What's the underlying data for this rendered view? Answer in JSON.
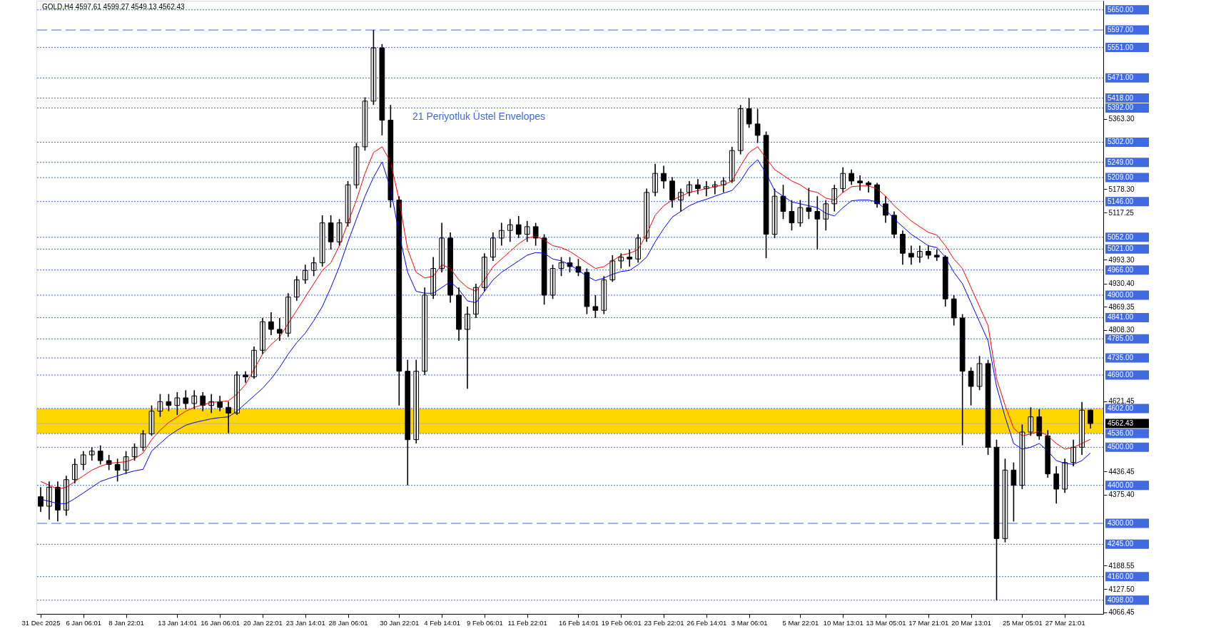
{
  "chart_data": {
    "type": "candlestick",
    "title": "GOLD,H4  4597.61 4599.27 4549.13 4562.43",
    "annotations": [
      "21 Periyotluk Üstel Envelopes"
    ],
    "categories": [
      "31 Dec 2025",
      null,
      null,
      null,
      null,
      "6 Jan 06:01",
      null,
      null,
      null,
      null,
      "8 Jan 22:01",
      null,
      null,
      null,
      null,
      null,
      "13 Jan 14:01",
      null,
      null,
      null,
      null,
      "16 Jan 06:01",
      null,
      null,
      null,
      null,
      "20 Jan 22:01",
      null,
      null,
      null,
      null,
      "23 Jan 14:01",
      null,
      null,
      null,
      null,
      "28 Jan 06:01",
      null,
      null,
      null,
      null,
      null,
      "30 Jan 22:01",
      null,
      null,
      null,
      null,
      "4 Feb 14:01",
      null,
      null,
      null,
      null,
      "9 Feb 06:01",
      null,
      null,
      null,
      null,
      "11 Feb 22:01",
      null,
      null,
      null,
      null,
      null,
      "16 Feb 14:01",
      null,
      null,
      null,
      null,
      "19 Feb 06:01",
      null,
      null,
      null,
      null,
      "23 Feb 22:01",
      null,
      null,
      null,
      null,
      "26 Feb 14:01",
      null,
      null,
      null,
      null,
      "3 Mar 06:01",
      null,
      null,
      null,
      null,
      null,
      "5 Mar 22:01",
      null,
      null,
      null,
      null,
      "10 Mar 13:01",
      null,
      null,
      null,
      null,
      "13 Mar 05:01",
      null,
      null,
      null,
      null,
      "17 Mar 21:01",
      null,
      null,
      null,
      null,
      "20 Mar 13:01",
      null,
      null,
      null,
      null,
      null,
      "25 Mar 05:01",
      null,
      null,
      null,
      null,
      "27 Mar 21:01",
      null,
      null,
      null
    ],
    "ohlc": [
      [
        4370,
        4395,
        4330,
        4345
      ],
      [
        4345,
        4410,
        4310,
        4395
      ],
      [
        4395,
        4410,
        4305,
        4335
      ],
      [
        4335,
        4425,
        4320,
        4415
      ],
      [
        4415,
        4470,
        4405,
        4455
      ],
      [
        4455,
        4490,
        4440,
        4480
      ],
      [
        4480,
        4500,
        4465,
        4490
      ],
      [
        4490,
        4505,
        4455,
        4465
      ],
      [
        4465,
        4480,
        4440,
        4455
      ],
      [
        4455,
        4470,
        4410,
        4440
      ],
      [
        4440,
        4490,
        4430,
        4475
      ],
      [
        4475,
        4510,
        4465,
        4500
      ],
      [
        4500,
        4545,
        4490,
        4535
      ],
      [
        4535,
        4610,
        4530,
        4595
      ],
      [
        4595,
        4640,
        4580,
        4620
      ],
      [
        4620,
        4640,
        4595,
        4610
      ],
      [
        4610,
        4645,
        4585,
        4630
      ],
      [
        4630,
        4650,
        4600,
        4615
      ],
      [
        4615,
        4650,
        4600,
        4635
      ],
      [
        4635,
        4645,
        4595,
        4610
      ],
      [
        4610,
        4640,
        4590,
        4620
      ],
      [
        4620,
        4635,
        4595,
        4605
      ],
      [
        4605,
        4620,
        4537,
        4590
      ],
      [
        4590,
        4700,
        4585,
        4690
      ],
      [
        4690,
        4700,
        4670,
        4685
      ],
      [
        4685,
        4765,
        4680,
        4755
      ],
      [
        4755,
        4840,
        4745,
        4830
      ],
      [
        4830,
        4855,
        4795,
        4810
      ],
      [
        4810,
        4840,
        4780,
        4800
      ],
      [
        4800,
        4905,
        4790,
        4895
      ],
      [
        4895,
        4950,
        4885,
        4940
      ],
      [
        4940,
        4980,
        4930,
        4965
      ],
      [
        4965,
        5000,
        4950,
        4985
      ],
      [
        4985,
        5110,
        4975,
        5090
      ],
      [
        5090,
        5110,
        5020,
        5040
      ],
      [
        5040,
        5100,
        5030,
        5090
      ],
      [
        5090,
        5200,
        5080,
        5190
      ],
      [
        5190,
        5300,
        5180,
        5290
      ],
      [
        5290,
        5420,
        5280,
        5410
      ],
      [
        5410,
        5597,
        5400,
        5550
      ],
      [
        5550,
        5560,
        5320,
        5360
      ],
      [
        5360,
        5400,
        5130,
        5150
      ],
      [
        5150,
        5160,
        4610,
        4700
      ],
      [
        4700,
        4730,
        4400,
        4520
      ],
      [
        4520,
        4730,
        4510,
        4700
      ],
      [
        4700,
        4920,
        4690,
        4900
      ],
      [
        4900,
        5000,
        4890,
        4970
      ],
      [
        4970,
        5090,
        4960,
        5050
      ],
      [
        5050,
        5065,
        4880,
        4900
      ],
      [
        4900,
        4920,
        4780,
        4810
      ],
      [
        4810,
        4870,
        4654,
        4850
      ],
      [
        4850,
        4930,
        4840,
        4920
      ],
      [
        4920,
        5010,
        4910,
        5000
      ],
      [
        5000,
        5065,
        4990,
        5050
      ],
      [
        5050,
        5090,
        5030,
        5070
      ],
      [
        5070,
        5100,
        5040,
        5085
      ],
      [
        5085,
        5108,
        5050,
        5060
      ],
      [
        5060,
        5095,
        5040,
        5080
      ],
      [
        5080,
        5090,
        5030,
        5050
      ],
      [
        5050,
        5060,
        4875,
        4900
      ],
      [
        4900,
        4980,
        4890,
        4970
      ],
      [
        4970,
        5000,
        4950,
        4985
      ],
      [
        4985,
        5000,
        4960,
        4975
      ],
      [
        4975,
        4995,
        4950,
        4960
      ],
      [
        4960,
        4970,
        4850,
        4870
      ],
      [
        4870,
        4900,
        4840,
        4860
      ],
      [
        4860,
        4950,
        4850,
        4940
      ],
      [
        4940,
        5005,
        4935,
        4990
      ],
      [
        4990,
        5010,
        4970,
        5000
      ],
      [
        5000,
        5020,
        4975,
        4995
      ],
      [
        4995,
        5060,
        4985,
        5050
      ],
      [
        5050,
        5180,
        5040,
        5170
      ],
      [
        5170,
        5245,
        5160,
        5220
      ],
      [
        5220,
        5240,
        5180,
        5200
      ],
      [
        5200,
        5210,
        5130,
        5150
      ],
      [
        5150,
        5180,
        5120,
        5170
      ],
      [
        5170,
        5200,
        5160,
        5190
      ],
      [
        5190,
        5205,
        5165,
        5180
      ],
      [
        5180,
        5200,
        5160,
        5185
      ],
      [
        5185,
        5200,
        5165,
        5190
      ],
      [
        5190,
        5210,
        5170,
        5200
      ],
      [
        5200,
        5290,
        5195,
        5280
      ],
      [
        5280,
        5400,
        5270,
        5390
      ],
      [
        5390,
        5418,
        5340,
        5350
      ],
      [
        5350,
        5390,
        5300,
        5320
      ],
      [
        5320,
        5330,
        4997,
        5060
      ],
      [
        5060,
        5180,
        5050,
        5160
      ],
      [
        5160,
        5190,
        5100,
        5120
      ],
      [
        5120,
        5150,
        5070,
        5090
      ],
      [
        5090,
        5150,
        5080,
        5130
      ],
      [
        5130,
        5182,
        5100,
        5120
      ],
      [
        5120,
        5160,
        5020,
        5100
      ],
      [
        5100,
        5150,
        5070,
        5140
      ],
      [
        5140,
        5190,
        5120,
        5180
      ],
      [
        5180,
        5236,
        5170,
        5220
      ],
      [
        5220,
        5230,
        5190,
        5200
      ],
      [
        5200,
        5215,
        5175,
        5195
      ],
      [
        5195,
        5200,
        5170,
        5190
      ],
      [
        5190,
        5195,
        5130,
        5140
      ],
      [
        5140,
        5160,
        5090,
        5110
      ],
      [
        5110,
        5120,
        5050,
        5060
      ],
      [
        5060,
        5070,
        4980,
        5010
      ],
      [
        5010,
        5030,
        4980,
        5000
      ],
      [
        5000,
        5030,
        4985,
        5015
      ],
      [
        5015,
        5030,
        4995,
        5005
      ],
      [
        5005,
        5020,
        4990,
        5000
      ],
      [
        5000,
        5005,
        4870,
        4890
      ],
      [
        4890,
        4900,
        4820,
        4840
      ],
      [
        4840,
        4850,
        4505,
        4700
      ],
      [
        4700,
        4710,
        4610,
        4660
      ],
      [
        4660,
        4740,
        4650,
        4720
      ],
      [
        4720,
        4730,
        4480,
        4500
      ],
      [
        4500,
        4520,
        4098,
        4260
      ],
      [
        4260,
        4470,
        4250,
        4440
      ],
      [
        4440,
        4460,
        4305,
        4400
      ],
      [
        4400,
        4560,
        4390,
        4540
      ],
      [
        4540,
        4605,
        4530,
        4580
      ],
      [
        4580,
        4600,
        4520,
        4530
      ],
      [
        4530,
        4545,
        4420,
        4430
      ],
      [
        4430,
        4450,
        4352,
        4390
      ],
      [
        4390,
        4470,
        4380,
        4460
      ],
      [
        4460,
        4520,
        4450,
        4500
      ],
      [
        4500,
        4619,
        4480,
        4597.61
      ],
      [
        4597.61,
        4599.27,
        4549.13,
        4562.43
      ]
    ],
    "series": [
      {
        "type": "line",
        "color": "#ff0000",
        "values": [
          4410,
          4400,
          4390,
          4395,
          4410,
          4425,
          4440,
          4450,
          4458,
          4460,
          4462,
          4470,
          4485,
          4520,
          4545,
          4565,
          4580,
          4595,
          4605,
          4612,
          4618,
          4620,
          4622,
          4640,
          4665,
          4705,
          4745,
          4770,
          4790,
          4825,
          4860,
          4895,
          4930,
          4965,
          4985,
          5030,
          5090,
          5150,
          5220,
          5275,
          5290,
          5250,
          5150,
          5020,
          4960,
          4945,
          4950,
          4980,
          4970,
          4940,
          4920,
          4910,
          4940,
          4975,
          4995,
          5015,
          5035,
          5050,
          5055,
          5045,
          5030,
          5025,
          5015,
          5000,
          4985,
          4970,
          4975,
          4990,
          5005,
          5010,
          5020,
          5060,
          5110,
          5135,
          5150,
          5160,
          5170,
          5175,
          5180,
          5185,
          5190,
          5200,
          5240,
          5275,
          5290,
          5260,
          5230,
          5215,
          5200,
          5190,
          5175,
          5170,
          5155,
          5150,
          5170,
          5185,
          5187,
          5187,
          5180,
          5160,
          5135,
          5115,
          5095,
          5080,
          5065,
          5058,
          5030,
          4995,
          4970,
          4920,
          4870,
          4820,
          4680,
          4610,
          4550,
          4530,
          4535,
          4542,
          4530,
          4510,
          4495,
          4500,
          4510,
          4521
        ]
      },
      {
        "type": "line",
        "color": "#0000ff",
        "values": [
          4363,
          4358,
          4352,
          4352,
          4365,
          4380,
          4395,
          4410,
          4418,
          4425,
          4432,
          4438,
          4442,
          4490,
          4510,
          4530,
          4545,
          4558,
          4565,
          4570,
          4575,
          4578,
          4580,
          4595,
          4615,
          4635,
          4655,
          4680,
          4710,
          4745,
          4775,
          4800,
          4833,
          4870,
          4920,
          4975,
          5040,
          5100,
          5160,
          5210,
          5250,
          5180,
          5060,
          4960,
          4910,
          4905,
          4905,
          4920,
          4935,
          4915,
          4885,
          4880,
          4910,
          4940,
          4960,
          4975,
          4990,
          5005,
          5012,
          5010,
          4995,
          4990,
          4980,
          4965,
          4950,
          4938,
          4945,
          4955,
          4962,
          4965,
          4980,
          5000,
          5040,
          5075,
          5105,
          5120,
          5135,
          5145,
          5152,
          5160,
          5168,
          5175,
          5200,
          5235,
          5256,
          5220,
          5175,
          5160,
          5145,
          5140,
          5135,
          5130,
          5115,
          5108,
          5130,
          5148,
          5150,
          5150,
          5145,
          5125,
          5100,
          5080,
          5060,
          5045,
          5030,
          5025,
          5000,
          4960,
          4930,
          4880,
          4830,
          4780,
          4660,
          4580,
          4510,
          4495,
          4500,
          4510,
          4490,
          4465,
          4458,
          4455,
          4465,
          4485
        ]
      }
    ],
    "ylim": [
      4062,
      5674
    ],
    "yticks": [
      {
        "value": 5363.3,
        "label": "5363.30"
      },
      {
        "value": 5178.3,
        "label": "5178.30"
      },
      {
        "value": 5117.25,
        "label": "5117.25"
      },
      {
        "value": 4993.3,
        "label": "4993.30"
      },
      {
        "value": 4930.4,
        "label": "4930.40"
      },
      {
        "value": 4869.35,
        "label": "4869.35"
      },
      {
        "value": 4808.3,
        "label": "4808.30"
      },
      {
        "value": 4621.45,
        "label": "4621.45"
      },
      {
        "value": 4436.45,
        "label": "4436.45"
      },
      {
        "value": 4375.4,
        "label": "4375.40"
      },
      {
        "value": 4188.55,
        "label": "4188.55"
      },
      {
        "value": 4127.5,
        "label": "4127.50"
      },
      {
        "value": 4066.45,
        "label": "4066.45"
      }
    ],
    "bands": [
      {
        "axis": "y",
        "from": 4536,
        "to": 4602,
        "color": "#ffd700"
      }
    ],
    "ref_lines": [
      {
        "axis": "y",
        "value": 5650,
        "label": "5650.00",
        "color": "#4169e1",
        "line_style": "dotted"
      },
      {
        "axis": "y",
        "value": 5597,
        "label": "5597.00",
        "color": "#4169e1",
        "line_style": "dashed"
      },
      {
        "axis": "y",
        "value": 5551,
        "label": "5551.00",
        "color": "#4169e1",
        "line_style": "dotted"
      },
      {
        "axis": "y",
        "value": 5471,
        "label": "5471.00",
        "color": "#4169e1",
        "line_style": "dotted"
      },
      {
        "axis": "y",
        "value": 5418,
        "label": "5418.00",
        "color": "#4169e1",
        "line_style": "dotted"
      },
      {
        "axis": "y",
        "value": 5392,
        "label": "5392.00",
        "color": "#4169e1",
        "line_style": "dotted"
      },
      {
        "axis": "y",
        "value": 5302,
        "label": "5302.00",
        "color": "#4169e1",
        "line_style": "dotted"
      },
      {
        "axis": "y",
        "value": 5249,
        "label": "5249.00",
        "color": "#4169e1",
        "line_style": "dotted"
      },
      {
        "axis": "y",
        "value": 5209,
        "label": "5209.00",
        "color": "#4169e1",
        "line_style": "dotted"
      },
      {
        "axis": "y",
        "value": 5146,
        "label": "5146.00",
        "color": "#4169e1",
        "line_style": "dotted"
      },
      {
        "axis": "y",
        "value": 5052,
        "label": "5052.00",
        "color": "#4169e1",
        "line_style": "dotted"
      },
      {
        "axis": "y",
        "value": 5021,
        "label": "5021.00",
        "color": "#4169e1",
        "line_style": "dotted"
      },
      {
        "axis": "y",
        "value": 4966,
        "label": "4966.00",
        "color": "#4169e1",
        "line_style": "dotted"
      },
      {
        "axis": "y",
        "value": 4900,
        "label": "4900.00",
        "color": "#4169e1",
        "line_style": "dotted"
      },
      {
        "axis": "y",
        "value": 4841,
        "label": "4841.00",
        "color": "#4169e1",
        "line_style": "dotted"
      },
      {
        "axis": "y",
        "value": 4785,
        "label": "4785.00",
        "color": "#4169e1",
        "line_style": "dotted"
      },
      {
        "axis": "y",
        "value": 4735,
        "label": "4735.00",
        "color": "#4169e1",
        "line_style": "dotted"
      },
      {
        "axis": "y",
        "value": 4690,
        "label": "4690.00",
        "color": "#4169e1",
        "line_style": "dotted"
      },
      {
        "axis": "y",
        "value": 4602,
        "label": "4602.00",
        "color": "#4169e1",
        "line_style": "dotted"
      },
      {
        "axis": "y",
        "value": 4562.43,
        "label": "4562.43",
        "color": "#b4b4b4",
        "line_style": "solid"
      },
      {
        "axis": "y",
        "value": 4536,
        "label": "4536.00",
        "color": "#4169e1",
        "line_style": "dotted"
      },
      {
        "axis": "y",
        "value": 4500,
        "label": "4500.00",
        "color": "#4169e1",
        "line_style": "dotted"
      },
      {
        "axis": "y",
        "value": 4400,
        "label": "4400.00",
        "color": "#4169e1",
        "line_style": "dotted"
      },
      {
        "axis": "y",
        "value": 4300,
        "label": "4300.00",
        "color": "#4169e1",
        "line_style": "dashed"
      },
      {
        "axis": "y",
        "value": 4245,
        "label": "4245.00",
        "color": "#4169e1",
        "line_style": "dotted"
      },
      {
        "axis": "y",
        "value": 4160,
        "label": "4160.00",
        "color": "#4169e1",
        "line_style": "dotted"
      },
      {
        "axis": "y",
        "value": 4098,
        "label": "4098.00",
        "color": "#4169e1",
        "line_style": "dotted"
      }
    ],
    "grid": false
  }
}
